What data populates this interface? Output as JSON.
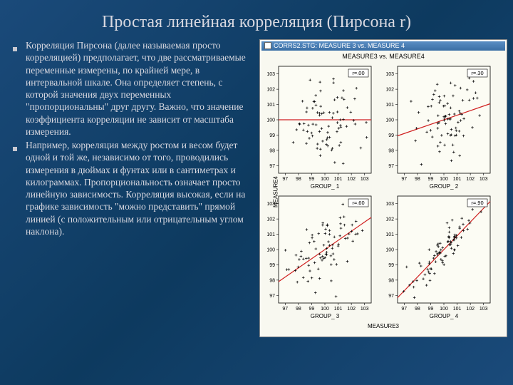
{
  "title": "Простая линейная корреляция (Пирсона r)",
  "bullets": [
    "Корреляция Пирсона (далее называемая просто корреляцией) предполагает, что две рассматриваемые переменные измерены, по крайней мере, в интервальной шкале. Она определяет степень, с которой значения двух переменных \"пропорциональны\" друг другу. Важно, что значение коэффициента корреляции не зависит от масштаба измерения.",
    "Например, корреляция между ростом и весом будет одной и той же, независимо от того, проводились измерения в дюймах и фунтах или в сантиметрах и килограммах. Пропорциональность означает просто линейную зависимость. Корреляция высокая, если на графике зависимость \"можно представить\" прямой линией (с положительным или отрицательным углом наклона)."
  ],
  "chartWindow": {
    "titlebar": "CORRS2.STG: MEASURE 3 vs. MEASURE 4",
    "header": "MEASURE3 vs. MEASURE4",
    "ylabel": "MEASURE4",
    "xlabel": "MEASURE3",
    "bg": "#f8f8f0",
    "plotArea": "#fcfcf4",
    "border": "#000000",
    "pointColor": "#000000",
    "lineColor": "#d02020",
    "axisFont": 7,
    "xlim": [
      96.5,
      103.5
    ],
    "ylim": [
      96.5,
      103.5
    ],
    "xticks": [
      97,
      98,
      99,
      100,
      101,
      102,
      103
    ],
    "yticks": [
      97,
      98,
      99,
      100,
      101,
      102,
      103
    ],
    "panels": [
      {
        "r": 0.0,
        "label": "r=.00",
        "xlabel": "GROUP_ 1"
      },
      {
        "r": 0.3,
        "label": "r=.30",
        "xlabel": "GROUP_ 2"
      },
      {
        "r": 0.6,
        "label": "r=.60",
        "xlabel": "GROUP_ 3"
      },
      {
        "r": 0.9,
        "label": "r=.90",
        "xlabel": "GROUP_ 4"
      }
    ],
    "nPoints": 80,
    "seed": 42
  }
}
